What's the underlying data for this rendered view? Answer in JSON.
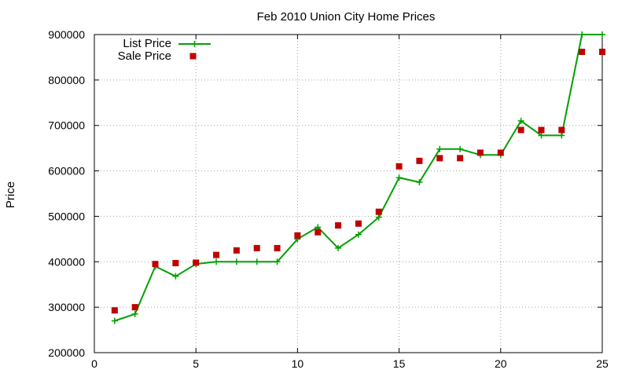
{
  "chart_data": {
    "type": "line",
    "title": "Feb 2010 Union City Home Prices",
    "xlabel": "",
    "ylabel": "Price",
    "xlim": [
      0,
      25
    ],
    "ylim": [
      200000,
      900000
    ],
    "x_ticks": [
      "0",
      "5",
      "10",
      "15",
      "20",
      "25"
    ],
    "y_ticks": [
      "200000",
      "300000",
      "400000",
      "500000",
      "600000",
      "700000",
      "800000",
      "900000"
    ],
    "grid": true,
    "legend_position": "top-left",
    "x": [
      1,
      2,
      3,
      4,
      5,
      6,
      7,
      8,
      9,
      10,
      11,
      12,
      13,
      14,
      15,
      16,
      17,
      18,
      19,
      20,
      21,
      22,
      23,
      24,
      25
    ],
    "series": [
      {
        "name": "List Price",
        "style": "line+cross",
        "color": "#00a000",
        "values": [
          270000,
          285000,
          390000,
          368000,
          395000,
          400000,
          400000,
          400000,
          400000,
          450000,
          476000,
          430000,
          460000,
          498000,
          585000,
          575000,
          648000,
          648000,
          635000,
          635000,
          710000,
          678000,
          678000,
          900000,
          900000
        ]
      },
      {
        "name": "Sale Price",
        "style": "square",
        "color": "#c00000",
        "values": [
          293000,
          300000,
          395000,
          397000,
          398000,
          415000,
          425000,
          430000,
          430000,
          458000,
          465000,
          480000,
          484000,
          510000,
          610000,
          622000,
          628000,
          628000,
          640000,
          640000,
          690000,
          690000,
          690000,
          862000,
          862000
        ]
      }
    ]
  }
}
